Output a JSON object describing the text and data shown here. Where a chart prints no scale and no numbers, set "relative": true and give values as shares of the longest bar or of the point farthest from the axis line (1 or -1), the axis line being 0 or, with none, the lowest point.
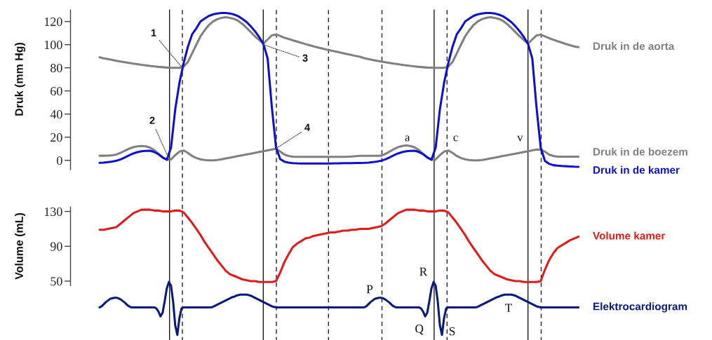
{
  "chart_data": [
    {
      "type": "line",
      "ylabel": "Druk (mm Hg)",
      "ylim": [
        -8,
        130
      ],
      "yticks": [
        0,
        20,
        40,
        60,
        80,
        100,
        120
      ],
      "tick_labels": "y",
      "categories": [
        null,
        null,
        null,
        null,
        null,
        null,
        null,
        null,
        null,
        null,
        null,
        null,
        null,
        null,
        null,
        null,
        null,
        null,
        null,
        null,
        null,
        null,
        null,
        null,
        null,
        null,
        null,
        null,
        null,
        null,
        null,
        null,
        null,
        null,
        null,
        null,
        null,
        null,
        null,
        null,
        null,
        null,
        null,
        null,
        null,
        null,
        null,
        null,
        null,
        null,
        null,
        null,
        null,
        null,
        null,
        null,
        null,
        null,
        null,
        null,
        null,
        null,
        null,
        null,
        null,
        null,
        null,
        null,
        null,
        null,
        null,
        null,
        null,
        null,
        null,
        null,
        null,
        null,
        null,
        null,
        null,
        null,
        null,
        null,
        null,
        null,
        null,
        null,
        null,
        null,
        null,
        null,
        null,
        null,
        null,
        null,
        null,
        null,
        null,
        null,
        null,
        null,
        null,
        null,
        null,
        null,
        null,
        null,
        null,
        null,
        null,
        null,
        null,
        null,
        null
      ],
      "series": [
        {
          "name": "Druk in de aorta",
          "color": "#808080",
          "values": [
            89.0,
            88.2,
            87.5,
            86.8,
            86.1,
            85.4,
            84.8,
            84.2,
            83.6,
            83.1,
            82.6,
            82.1,
            81.6,
            81.2,
            80.8,
            80.5,
            80.2,
            80.0,
            80.0,
            80.0,
            81.0,
            85.0,
            92.3,
            99.8,
            107.1,
            112.4,
            116.9,
            120.0,
            122.0,
            123.1,
            123.8,
            123.2,
            122.3,
            120.6,
            117.9,
            114.5,
            110.8,
            107.2,
            104.0,
            101.0,
            104.5,
            108.0,
            108.8,
            107.5,
            106.0,
            104.9,
            103.8,
            102.7,
            101.6,
            100.5,
            99.5,
            98.5,
            97.6,
            96.7,
            95.8,
            95.0,
            94.2,
            93.4,
            92.6,
            91.8,
            91.0,
            90.2,
            89.5,
            88.3,
            87.5,
            86.8,
            86.1,
            85.4,
            84.8,
            84.2,
            83.6,
            83.1,
            82.6,
            82.1,
            81.6,
            81.2,
            80.8,
            80.5,
            80.2,
            80.1,
            80.0,
            80.0,
            80.0,
            81.0,
            85.0,
            92.3,
            99.8,
            107.1,
            112.4,
            116.9,
            120.0,
            122.0,
            123.1,
            123.8,
            123.2,
            122.3,
            120.6,
            117.9,
            114.5,
            110.8,
            107.2,
            104.0,
            101.0,
            104.5,
            108.0,
            108.6,
            107.2,
            105.6,
            104.3,
            103.0,
            101.8,
            100.6,
            99.5,
            98.5,
            97.9
          ]
        },
        {
          "name": "Druk in de boezem",
          "color": "#808080",
          "values": [
            4.0,
            4.0,
            4.1,
            4.4,
            5.0,
            6.5,
            8.3,
            10.0,
            11.3,
            12.1,
            12.4,
            12.1,
            11.0,
            8.8,
            5.6,
            2.4,
            0.4,
            0.8,
            4.5,
            7.5,
            8.5,
            6.5,
            3.8,
            2.0,
            0.9,
            0.3,
            0.0,
            0.0,
            0.3,
            0.9,
            1.6,
            2.3,
            3.0,
            3.7,
            4.4,
            5.1,
            5.8,
            6.5,
            7.2,
            7.9,
            8.6,
            9.3,
            10.0,
            7.5,
            5.0,
            3.8,
            3.2,
            3.0,
            3.0,
            3.0,
            3.0,
            3.0,
            3.0,
            3.0,
            3.0,
            3.0,
            3.0,
            3.0,
            3.0,
            3.1,
            3.3,
            3.6,
            3.9,
            3.9,
            3.9,
            3.9,
            3.9,
            4.0,
            5.5,
            7.5,
            9.6,
            11.3,
            12.4,
            12.8,
            12.4,
            11.2,
            8.9,
            5.7,
            2.4,
            0.4,
            0.8,
            4.5,
            7.5,
            8.5,
            6.5,
            3.8,
            2.0,
            0.9,
            0.3,
            0.0,
            0.0,
            0.3,
            0.9,
            1.6,
            2.3,
            3.0,
            3.7,
            4.4,
            5.1,
            5.8,
            6.5,
            7.2,
            7.9,
            8.6,
            9.3,
            9.3,
            7.5,
            5.0,
            3.8,
            3.2,
            3.1,
            3.1,
            3.1,
            3.1,
            3.1
          ]
        },
        {
          "name": "Druk in de kamer",
          "color": "#1010cc",
          "values": [
            -2.2,
            -2.0,
            -1.6,
            -1.1,
            -0.4,
            0.8,
            2.5,
            4.3,
            5.9,
            7.1,
            7.8,
            8.2,
            8.3,
            7.2,
            5.3,
            2.5,
            0.6,
            11.0,
            44.0,
            67.0,
            84.0,
            98.0,
            108.8,
            114.0,
            120.0,
            122.5,
            124.8,
            126.2,
            127.0,
            127.4,
            127.4,
            127.0,
            126.0,
            124.6,
            122.2,
            119.5,
            115.8,
            111.5,
            106.5,
            100.5,
            88.0,
            46.0,
            11.0,
            1.0,
            -1.2,
            -2.0,
            -2.4,
            -2.6,
            -2.7,
            -2.7,
            -2.7,
            -2.7,
            -2.7,
            -2.7,
            -2.7,
            -2.7,
            -2.6,
            -2.6,
            -2.5,
            -2.5,
            -2.4,
            -2.3,
            -2.3,
            -2.2,
            -2.0,
            -1.6,
            -1.1,
            -0.4,
            0.8,
            2.5,
            4.3,
            5.9,
            7.1,
            7.8,
            8.2,
            8.3,
            7.2,
            5.3,
            2.5,
            0.6,
            11.0,
            44.0,
            67.0,
            84.0,
            98.0,
            108.8,
            114.0,
            120.0,
            122.5,
            124.8,
            126.2,
            127.0,
            127.4,
            127.4,
            127.0,
            126.0,
            124.6,
            122.2,
            119.5,
            115.8,
            111.5,
            106.5,
            100.5,
            88.0,
            46.0,
            11.0,
            -0.5,
            -3.0,
            -4.2,
            -4.6,
            -4.9,
            -5.1,
            -5.3,
            -5.5,
            -5.6
          ]
        }
      ],
      "annotations": [
        "1",
        "2",
        "3",
        "4",
        "a",
        "c",
        "v"
      ]
    },
    {
      "type": "line",
      "ylabel": "Volume (mL)",
      "ylim": [
        45,
        135
      ],
      "yticks": [
        50,
        90,
        130
      ],
      "tick_labels": "y",
      "categories": [
        null,
        null,
        null,
        null,
        null,
        null,
        null,
        null,
        null,
        null,
        null,
        null,
        null,
        null,
        null,
        null,
        null,
        null,
        null,
        null,
        null,
        null,
        null,
        null,
        null,
        null,
        null,
        null,
        null,
        null,
        null,
        null,
        null,
        null,
        null,
        null,
        null,
        null,
        null,
        null,
        null,
        null,
        null,
        null,
        null,
        null,
        null,
        null,
        null,
        null,
        null,
        null,
        null,
        null,
        null,
        null,
        null,
        null,
        null,
        null,
        null,
        null,
        null,
        null,
        null,
        null,
        null,
        null,
        null,
        null,
        null,
        null,
        null,
        null,
        null,
        null,
        null,
        null,
        null,
        null,
        null,
        null,
        null,
        null,
        null,
        null,
        null,
        null,
        null,
        null,
        null,
        null,
        null,
        null,
        null,
        null,
        null,
        null,
        null,
        null,
        null,
        null,
        null,
        null,
        null,
        null,
        null,
        null,
        null,
        null,
        null,
        null,
        null,
        null,
        null
      ],
      "series": [
        {
          "name": "Volume kamer",
          "color": "#dd1c1c",
          "values": [
            109,
            109,
            110,
            111,
            112,
            116,
            120,
            124,
            128,
            130,
            132,
            132,
            132,
            131,
            131,
            130,
            130,
            130,
            131,
            131,
            129,
            123,
            117,
            110,
            103,
            95,
            88,
            81,
            74,
            68,
            62,
            58,
            56,
            54,
            52,
            51,
            50,
            50,
            49,
            49,
            49,
            49,
            50,
            60,
            72,
            81,
            89,
            93,
            96,
            99,
            100,
            102,
            103,
            104,
            105,
            106,
            106,
            107,
            108,
            108,
            109,
            109,
            110,
            110,
            110,
            111,
            112,
            113,
            116,
            120,
            124,
            128,
            130,
            132,
            132,
            132,
            131,
            131,
            130,
            130,
            130,
            131,
            131,
            129,
            123,
            117,
            110,
            103,
            95,
            88,
            81,
            74,
            68,
            62,
            58,
            56,
            54,
            52,
            51,
            50,
            50,
            49,
            49,
            49,
            49,
            50,
            63,
            74,
            82,
            88,
            91,
            94,
            97,
            99,
            101
          ]
        }
      ]
    },
    {
      "type": "line",
      "relative": true,
      "tick_labels": false,
      "categories": [
        null,
        null,
        null,
        null,
        null,
        null,
        null,
        null,
        null,
        null,
        null,
        null,
        null,
        null,
        null,
        null,
        null,
        null,
        null,
        null,
        null,
        null,
        null,
        null,
        null,
        null,
        null,
        null,
        null,
        null,
        null,
        null,
        null,
        null,
        null,
        null,
        null,
        null,
        null,
        null,
        null,
        null,
        null,
        null,
        null,
        null,
        null,
        null,
        null,
        null,
        null,
        null,
        null,
        null,
        null,
        null,
        null,
        null,
        null,
        null,
        null,
        null,
        null,
        null,
        null,
        null,
        null,
        null,
        null,
        null,
        null,
        null,
        null,
        null,
        null,
        null,
        null,
        null,
        null,
        null,
        null,
        null,
        null,
        null,
        null,
        null,
        null,
        null,
        null,
        null,
        null,
        null,
        null,
        null,
        null,
        null,
        null,
        null,
        null,
        null,
        null,
        null,
        null,
        null,
        null,
        null,
        null,
        null,
        null,
        null,
        null,
        null,
        null,
        null,
        null,
        null,
        null,
        null,
        null,
        null,
        null,
        null,
        null,
        null,
        null,
        null,
        null,
        null,
        null,
        null,
        null,
        null,
        null,
        null,
        null,
        null,
        null,
        null,
        null,
        null,
        null,
        null,
        null,
        null,
        null,
        null,
        null,
        null,
        null,
        null,
        null,
        null,
        null,
        null,
        null,
        null,
        null,
        null,
        null,
        null,
        null,
        null,
        null,
        null,
        null,
        null,
        null,
        null,
        null,
        null,
        null,
        null,
        null,
        null,
        null,
        null,
        null,
        null,
        null,
        null,
        null,
        null,
        null,
        null,
        null,
        null,
        null,
        null,
        null,
        null,
        null,
        null,
        null,
        null,
        null,
        null,
        null,
        null,
        null,
        null,
        null,
        null,
        null,
        null,
        null,
        null,
        null,
        null,
        null,
        null,
        null,
        null,
        null,
        null,
        null,
        null,
        null,
        null,
        null,
        null,
        null,
        null,
        null,
        null,
        null,
        null,
        null,
        null,
        null
      ],
      "series": [
        {
          "name": "Elektrocardiogram",
          "color": "#0a1a7a",
          "values": [
            0.52,
            0.54,
            0.58,
            0.62,
            0.65,
            0.68,
            0.69,
            0.7,
            0.7,
            0.69,
            0.67,
            0.64,
            0.61,
            0.57,
            0.54,
            0.52,
            0.52,
            0.52,
            0.52,
            0.52,
            0.52,
            0.52,
            0.52,
            0.52,
            0.52,
            0.52,
            0.52,
            0.5,
            0.44,
            0.35,
            0.42,
            0.64,
            0.88,
            1.0,
            0.93,
            0.63,
            0.18,
            0.0,
            0.32,
            0.5,
            0.52,
            0.52,
            0.52,
            0.52,
            0.52,
            0.52,
            0.52,
            0.52,
            0.52,
            0.52,
            0.52,
            0.52,
            0.52,
            0.52,
            0.53,
            0.55,
            0.57,
            0.59,
            0.61,
            0.63,
            0.65,
            0.67,
            0.69,
            0.71,
            0.72,
            0.74,
            0.75,
            0.76,
            0.76,
            0.76,
            0.76,
            0.75,
            0.74,
            0.72,
            0.7,
            0.68,
            0.66,
            0.64,
            0.62,
            0.6,
            0.58,
            0.56,
            0.54,
            0.53,
            0.52,
            0.52,
            0.52,
            0.52,
            0.52,
            0.52,
            0.52,
            0.52,
            0.52,
            0.52,
            0.52,
            0.52,
            0.52,
            0.52,
            0.52,
            0.52,
            0.52,
            0.52,
            0.52,
            0.52,
            0.52,
            0.52,
            0.52,
            0.52,
            0.52,
            0.52,
            0.52,
            0.52,
            0.52,
            0.52,
            0.52,
            0.52,
            0.52,
            0.52,
            0.52,
            0.52,
            0.52,
            0.52,
            0.52,
            0.52,
            0.52,
            0.52,
            0.52,
            0.54,
            0.58,
            0.62,
            0.65,
            0.68,
            0.69,
            0.7,
            0.7,
            0.69,
            0.67,
            0.64,
            0.61,
            0.57,
            0.54,
            0.52,
            0.52,
            0.52,
            0.52,
            0.52,
            0.52,
            0.52,
            0.52,
            0.52,
            0.52,
            0.52,
            0.52,
            0.5,
            0.44,
            0.35,
            0.42,
            0.64,
            0.88,
            1.0,
            0.93,
            0.63,
            0.18,
            0.0,
            0.32,
            0.5,
            0.52,
            0.52,
            0.52,
            0.52,
            0.52,
            0.52,
            0.52,
            0.52,
            0.52,
            0.52,
            0.52,
            0.52,
            0.52,
            0.52,
            0.53,
            0.55,
            0.57,
            0.59,
            0.61,
            0.63,
            0.65,
            0.67,
            0.69,
            0.71,
            0.72,
            0.74,
            0.75,
            0.76,
            0.76,
            0.76,
            0.76,
            0.75,
            0.74,
            0.72,
            0.7,
            0.68,
            0.66,
            0.64,
            0.62,
            0.6,
            0.58,
            0.56,
            0.54,
            0.53,
            0.52,
            0.52,
            0.52,
            0.52,
            0.52,
            0.52,
            0.52,
            0.52,
            0.52,
            0.52,
            0.52,
            0.52,
            0.52,
            0.52,
            0.52,
            0.52,
            0.52,
            0.52,
            0.52
          ]
        }
      ],
      "annotations": [
        "P",
        "Q",
        "R",
        "S",
        "T"
      ]
    }
  ]
}
